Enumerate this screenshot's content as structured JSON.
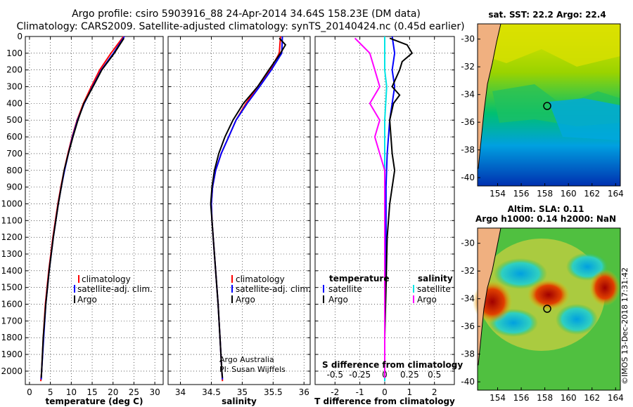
{
  "titles": {
    "line1": "Argo profile: csiro 5903916_88 24-Apr-2014 34.64S 158.23E (DM data)",
    "line2": "Climatology: CARS2009. Satellite-adjusted climatology: synTS_20140424.nc (0.45d earlier)"
  },
  "panel_legend": {
    "climatology": "climatology",
    "satellite": "satellite-adj. clim.",
    "argo": "Argo"
  },
  "diff_legend": {
    "temp_header": "temperature",
    "sal_header": "salinity",
    "satellite": "satellite",
    "argo": "Argo",
    "s_axis_label": "S difference from climatology"
  },
  "credits": {
    "line1": "Argo Australia",
    "line2": "PI: Susan Wijffels"
  },
  "maps": {
    "sst_title": "sat. SST: 22.2 Argo: 22.4",
    "sla_title1": "Altim. SLA: 0.11",
    "sla_title2": "Argo h1000: 0.14 h2000: NaN",
    "lon_ticks": [
      "154",
      "156",
      "158",
      "160",
      "162",
      "164"
    ],
    "lat_ticks": [
      "-30",
      "-32",
      "-34",
      "-36",
      "-38",
      "-40"
    ],
    "stamp": "©IMOS 13-Dec-2018 17:31:42"
  },
  "colors": {
    "climatology": "#ff0000",
    "satellite": "#0000ff",
    "argo": "#000000",
    "sal_satellite": "#00e5e5",
    "sal_argo": "#ff00ff"
  },
  "chart_data": [
    {
      "type": "line",
      "xlabel": "temperature (deg C)",
      "ylabel": "",
      "xlim": [
        -1,
        32
      ],
      "ylim": [
        2080,
        0
      ],
      "x_ticks": [
        "0",
        "5",
        "10",
        "15",
        "20",
        "25",
        "30"
      ],
      "y_ticks": [
        "0",
        "100",
        "200",
        "300",
        "400",
        "500",
        "600",
        "700",
        "800",
        "900",
        "1000",
        "1100",
        "1200",
        "1300",
        "1400",
        "1500",
        "1600",
        "1700",
        "1800",
        "1900",
        "2000"
      ],
      "series": [
        {
          "name": "climatology",
          "depth": [
            0,
            100,
            200,
            300,
            400,
            500,
            600,
            700,
            800,
            900,
            1000,
            1200,
            1400,
            1600,
            1800,
            2000,
            2060
          ],
          "values": [
            22.5,
            19.5,
            16.8,
            14.8,
            12.9,
            11.4,
            10.2,
            9.2,
            8.3,
            7.5,
            6.8,
            5.6,
            4.6,
            3.8,
            3.3,
            2.9,
            2.7
          ]
        },
        {
          "name": "satellite-adj. clim.",
          "depth": [
            0,
            100,
            200,
            300,
            400,
            500,
            600,
            700,
            800,
            900,
            1000,
            1200,
            1400,
            1600,
            1800,
            2000,
            2050
          ],
          "values": [
            22.7,
            20.1,
            17.2,
            15.1,
            13.1,
            11.5,
            10.3,
            9.3,
            8.4,
            7.6,
            6.9,
            5.7,
            4.7,
            3.9,
            3.4,
            2.9,
            2.8
          ]
        },
        {
          "name": "Argo",
          "depth": [
            10,
            100,
            200,
            300,
            400,
            500,
            600,
            700,
            800,
            900,
            1000,
            1200,
            1400,
            1600,
            1800,
            2000,
            2040
          ],
          "values": [
            22.6,
            20.3,
            17.3,
            15.2,
            13.0,
            11.6,
            10.4,
            9.3,
            8.3,
            7.6,
            6.9,
            5.7,
            4.7,
            3.9,
            3.3,
            2.9,
            2.8
          ]
        }
      ]
    },
    {
      "type": "line",
      "xlabel": "salinity",
      "ylabel": "",
      "xlim": [
        33.8,
        36.1
      ],
      "ylim": [
        2080,
        0
      ],
      "x_ticks": [
        "34",
        "34.5",
        "35",
        "35.5",
        "36"
      ],
      "series": [
        {
          "name": "climatology",
          "depth": [
            0,
            100,
            200,
            300,
            400,
            500,
            600,
            700,
            800,
            900,
            1000,
            1100,
            1200,
            1400,
            1600,
            1800,
            2000,
            2060
          ],
          "values": [
            35.62,
            35.6,
            35.45,
            35.25,
            35.06,
            34.9,
            34.78,
            34.66,
            34.57,
            34.52,
            34.5,
            34.51,
            34.53,
            34.57,
            34.61,
            34.64,
            34.67,
            34.68
          ]
        },
        {
          "name": "satellite-adj. clim.",
          "depth": [
            0,
            100,
            200,
            300,
            400,
            500,
            600,
            700,
            800,
            900,
            1000,
            1100,
            1200,
            1400,
            1600,
            1800,
            2000,
            2050
          ],
          "values": [
            35.65,
            35.64,
            35.47,
            35.28,
            35.08,
            34.9,
            34.78,
            34.66,
            34.57,
            34.52,
            34.5,
            34.51,
            34.53,
            34.57,
            34.61,
            34.64,
            34.67,
            34.68
          ]
        },
        {
          "name": "Argo",
          "depth": [
            10,
            50,
            100,
            200,
            300,
            400,
            500,
            600,
            700,
            800,
            900,
            1000,
            1100,
            1200,
            1400,
            1600,
            1800,
            2000,
            2040
          ],
          "values": [
            35.6,
            35.7,
            35.62,
            35.43,
            35.25,
            35.02,
            34.85,
            34.72,
            34.62,
            34.55,
            34.51,
            34.49,
            34.51,
            34.53,
            34.57,
            34.61,
            34.64,
            34.67,
            34.68
          ]
        }
      ]
    },
    {
      "type": "line",
      "xlabel": "T difference from climatology",
      "ylabel": "",
      "xlim": [
        -2.8,
        2.8
      ],
      "ylim": [
        2080,
        0
      ],
      "x_ticks": [
        "-2",
        "-1",
        "0",
        "1",
        "2"
      ],
      "s_ticks": [
        "-0.5",
        "-0.25",
        "0",
        "0.25",
        "0.5"
      ],
      "series": [
        {
          "name": "temperature satellite",
          "depth": [
            0,
            100,
            200,
            300,
            400,
            500,
            700,
            900,
            1200,
            1500,
            1800,
            2060
          ],
          "values": [
            0.3,
            0.4,
            0.3,
            0.4,
            0.3,
            0.2,
            0.1,
            0.05,
            0.05,
            0.0,
            0.0,
            0.0
          ]
        },
        {
          "name": "temperature Argo",
          "depth": [
            10,
            50,
            100,
            150,
            200,
            300,
            350,
            400,
            500,
            700,
            800,
            900,
            1000,
            1200,
            1500,
            1800,
            2040
          ],
          "values": [
            0.2,
            0.9,
            1.1,
            0.7,
            0.6,
            0.3,
            0.6,
            0.35,
            0.2,
            0.3,
            0.4,
            0.3,
            0.2,
            0.1,
            0.05,
            0.0,
            0.0
          ]
        },
        {
          "name": "salinity satellite",
          "depth": [
            0,
            100,
            200,
            300,
            500,
            700,
            1000,
            1500,
            2060
          ],
          "values": [
            0.0,
            0.0,
            0.0,
            0.02,
            0.0,
            0.0,
            0.0,
            0.0,
            0.0
          ]
        },
        {
          "name": "salinity Argo",
          "depth": [
            10,
            100,
            200,
            300,
            400,
            500,
            600,
            700,
            800,
            1000,
            1200,
            1500,
            2040
          ],
          "values": [
            -0.3,
            -0.15,
            -0.1,
            -0.05,
            -0.15,
            -0.05,
            -0.1,
            -0.05,
            0.0,
            0.0,
            0.0,
            0.0,
            0.0
          ]
        }
      ]
    }
  ]
}
